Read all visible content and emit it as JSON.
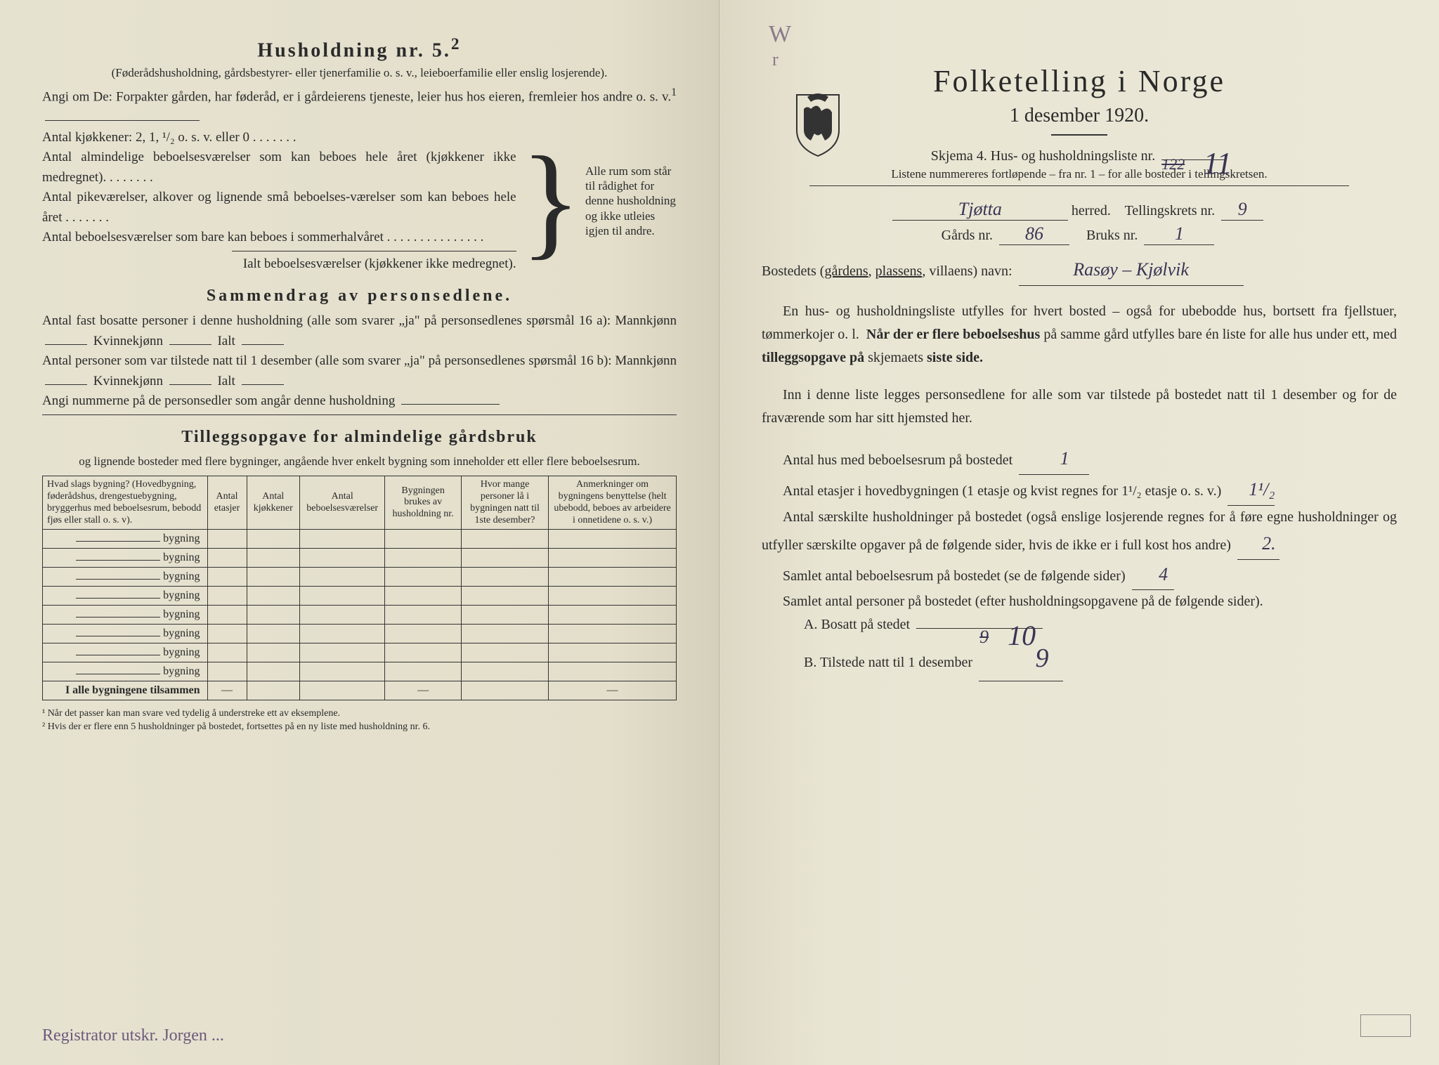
{
  "left": {
    "title": "Husholdning nr. 5.",
    "title_sup": "2",
    "parenthetical": "(Føderådshusholdning, gårdsbestyrer- eller tjenerfamilie o. s. v., leieboerfamilie eller enslig losjerende).",
    "angi_intro": "Angi om De: Forpakter gården, har føderåd, er i gårdeierens tjeneste, leier hus hos eieren, fremleier hos andre o. s. v.",
    "angi_sup": "1",
    "kitchen_line": "Antal kjøkkener: 2, 1, ¹/₂ o. s. v. eller 0 . . . . . . .",
    "rooms_line1": "Antal almindelige beboelsesværelser som kan beboes hele året (kjøkkener ikke medregnet). . . . . . . .",
    "rooms_line2": "Antal pikeværelser, alkover og lignende små beboelses-værelser som kan beboes hele året . . . . . . .",
    "rooms_line3": "Antal beboelsesværelser som bare kan beboes i sommerhalvåret . . . . . . . . . . . . . . .",
    "rooms_total": "Ialt beboelsesværelser (kjøkkener ikke medregnet).",
    "brace_text": "Alle rum som står til rådighet for denne husholdning og ikke utleies igjen til andre.",
    "summary_title": "Sammendrag av personsedlene.",
    "summary_l1a": "Antal fast bosatte personer i denne husholdning (alle som svarer „ja\" på personsedlenes spørsmål 16 a): Mannkjønn",
    "summary_l1b": "Kvinnekjønn",
    "summary_l1c": "Ialt",
    "summary_l2a": "Antal personer som var tilstede natt til 1 desember (alle som svarer „ja\" på personsedlenes spørsmål 16 b): Mannkjønn",
    "summary_angi": "Angi nummerne på de personsedler som angår denne husholdning",
    "tillegg_title": "Tilleggsopgave for almindelige gårdsbruk",
    "tillegg_sub": "og lignende bosteder med flere bygninger, angående hver enkelt bygning som inneholder ett eller flere beboelsesrum.",
    "table": {
      "columns": [
        "Hvad slags bygning?\n(Hovedbygning, føderådshus, drengestuebygning, bryggerhus med beboelsesrum, bebodd fjøs eller stall o. s. v).",
        "Antal etasjer",
        "Antal kjøkkener",
        "Antal beboelsesværelser",
        "Bygningen brukes av husholdning nr.",
        "Hvor mange personer lå i bygningen natt til 1ste desember?",
        "Anmerkninger om bygningens benyttelse (helt ubebodd, beboes av arbeidere i onnetidene o. s. v.)"
      ],
      "row_label": "bygning",
      "row_count": 8,
      "total_label": "I alle bygningene tilsammen"
    },
    "footnote1": "¹ Når det passer kan man svare ved tydelig å understreke ett av eksemplene.",
    "footnote2": "² Hvis der er flere enn 5 husholdninger på bostedet, fortsettes på en ny liste med husholdning nr. 6.",
    "hw_bottom": "Registrator utskr. Jorgen ..."
  },
  "right": {
    "pencil_top": "W",
    "pencil_top2": "r",
    "title": "Folketelling i Norge",
    "subtitle": "1 desember 1920.",
    "skjema_line": "Skjema 4.   Hus- og husholdningsliste nr.",
    "skjema_nr_hw": "11",
    "skjema_nr_struck": "122",
    "listen_line": "Listene nummereres fortløpende – fra nr. 1 – for alle bosteder i tellingskretsen.",
    "herred_hw": "Tjøtta",
    "herred_label": "herred.",
    "krets_label": "Tellingskrets nr.",
    "krets_nr": "9",
    "gards_label": "Gårds nr.",
    "gards_nr": "86",
    "bruks_label": "Bruks nr.",
    "bruks_nr": "1",
    "bosted_label": "Bostedets (gårdens, plassens, villaens) navn:",
    "bosted_hw": "Rasøy – Kjølvik",
    "para1": "En hus- og husholdningsliste utfylles for hvert bosted – også for ubebodde hus, bortsett fra fjellstuer, tømmerkojer o. l.  Når der er flere beboelseshus på samme gård utfylles bare én liste for alle hus under ett, med tilleggsopgave på skjemaets siste side.",
    "para2": "Inn i denne liste legges personsedlene for alle som var tilstede på bostedet natt til 1 desember og for de fraværende som har sitt hjemsted her.",
    "q1": "Antal hus med beboelsesrum på bostedet",
    "q1_ans": "1",
    "q2a": "Antal etasjer i hovedbygningen (1 etasje og kvist regnes for 1¹/₂ etasje o. s. v.)",
    "q2_ans": "1¹/₂",
    "q3": "Antal særskilte husholdninger på bostedet (også enslige losjerende regnes for å føre egne husholdninger og utfyller særskilte opgaver på de følgende sider, hvis de ikke er i full kost hos andre)",
    "q3_ans": "2.",
    "q4": "Samlet antal beboelsesrum på bostedet (se de følgende sider)",
    "q4_ans": "4",
    "q5": "Samlet antal personer på bostedet (efter husholdningsopgavene på de følgende sider).",
    "qa_label": "A.  Bosatt på stedet",
    "qa_struck": "9",
    "qa_ans": "10",
    "qb_label": "B.  Tilstede natt til 1 desember",
    "qb_ans": "9"
  },
  "colors": {
    "paper_left": "#e6e2d0",
    "paper_right": "#ece8d8",
    "ink": "#2a2a2a",
    "handwriting": "#3a3555",
    "pencil": "#8a7a8a"
  }
}
